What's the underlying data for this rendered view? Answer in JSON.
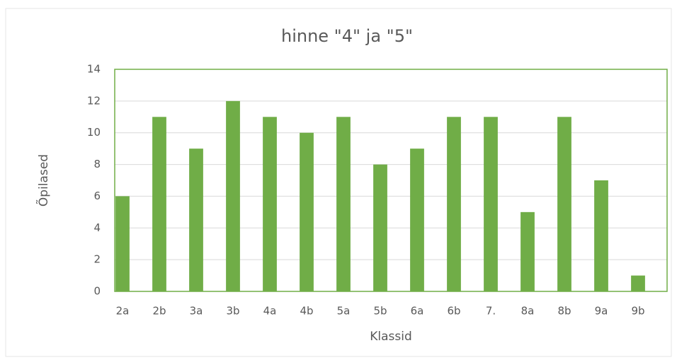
{
  "chart_data": {
    "type": "bar",
    "title": "hinne \"4\" ja \"5\"",
    "x_label": "Klassid",
    "y_label": "Õpilased",
    "categories": [
      "2a",
      "2b",
      "3a",
      "3b",
      "4a",
      "4b",
      "5a",
      "5b",
      "6a",
      "6b",
      "7.",
      "8a",
      "8b",
      "9a",
      "9b"
    ],
    "values": [
      6,
      11,
      9,
      12,
      11,
      10,
      11,
      8,
      9,
      11,
      11,
      5,
      11,
      7,
      1
    ],
    "color": "#70ad47",
    "ylim": [
      0,
      14
    ],
    "yticks": [
      0,
      2,
      4,
      6,
      8,
      10,
      12,
      14
    ],
    "grid": true
  }
}
